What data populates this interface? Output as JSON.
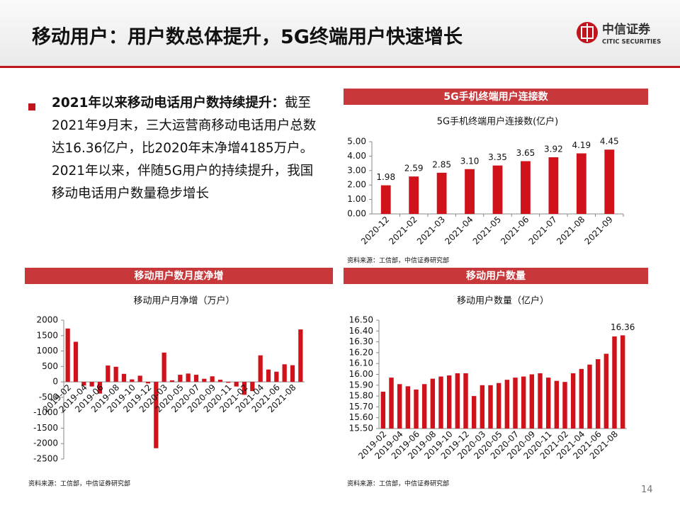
{
  "header": {
    "title": "移动用户：用户数总体提升，5G终端用户快速增长",
    "logo": "中信证券",
    "logo_en": "CITIC SECURITIES"
  },
  "bullet": {
    "lead": "2021年以来移动电话用户数持续提升：",
    "text": "截至2021年9月末，三大运营商移动电话用户总数达16.36亿户，比2020年末净增4185万户。2021年以来，伴随5G用户的持续提升，我国移动电话用户数量稳步增长"
  },
  "page_number": "14",
  "chart_data": [
    {
      "type": "bar",
      "title": "5G手机终端用户连接数",
      "subtitle": "5G手机终端用户连接数(亿户)",
      "source": "资料来源：工信部，中信证券研究部",
      "color": "#d0121b",
      "categories": [
        "2020-12",
        "2021-02",
        "2021-03",
        "2021-04",
        "2021-05",
        "2021-06",
        "2021-07",
        "2021-08",
        "2021-09"
      ],
      "values": [
        1.98,
        2.59,
        2.85,
        3.1,
        3.35,
        3.65,
        3.92,
        4.19,
        4.45
      ],
      "value_labels": [
        "1.98",
        "2.59",
        "2.85",
        "3.10",
        "3.35",
        "3.65",
        "3.92",
        "4.19",
        "4.45"
      ],
      "ylim": [
        0,
        5
      ],
      "yticks": [
        {
          "value": 0,
          "label": "0.00"
        },
        {
          "value": 1,
          "label": "1.00"
        },
        {
          "value": 2,
          "label": "2.00"
        },
        {
          "value": 3,
          "label": "3.00"
        },
        {
          "value": 4,
          "label": "4.00"
        },
        {
          "value": 5,
          "label": "5.00"
        }
      ]
    },
    {
      "type": "bar",
      "title": "移动用户数月度净增",
      "subtitle": "移动用户月净增（万户）",
      "source": "资料来源：工信部，中信证券研究部",
      "color": "#d0121b",
      "categories": [
        "2019-02",
        null,
        "2019-04",
        null,
        "2019-06",
        null,
        "2019-08",
        null,
        "2019-10",
        null,
        "2019-12",
        null,
        "2020-03",
        null,
        "2020-05",
        null,
        "2020-07",
        null,
        "2020-09",
        null,
        "2020-11",
        null,
        "2021-02",
        null,
        "2021-04",
        null,
        "2021-06",
        null,
        "2021-08",
        null
      ],
      "values": [
        1730,
        1300,
        -120,
        -150,
        -380,
        530,
        490,
        260,
        80,
        200,
        -50,
        -2150,
        950,
        50,
        230,
        270,
        230,
        100,
        180,
        70,
        -30,
        -150,
        -420,
        -300,
        860,
        400,
        330,
        570,
        540,
        1700
      ],
      "ylim": [
        -2500,
        2000
      ],
      "yticks": [
        -2500,
        -2000,
        -1500,
        -1000,
        -500,
        0,
        500,
        1000,
        1500,
        2000
      ]
    },
    {
      "type": "bar",
      "title": "移动用户数量",
      "subtitle": "移动用户数量（亿户）",
      "source": "资料来源：工信部，中信证券研究部",
      "color": "#d0121b",
      "categories": [
        "2019-02",
        null,
        "2019-04",
        null,
        "2019-06",
        null,
        "2019-08",
        null,
        "2019-10",
        null,
        "2019-12",
        null,
        "2020-03",
        null,
        "2020-05",
        null,
        "2020-07",
        null,
        "2020-09",
        null,
        "2020-11",
        null,
        "2021-02",
        null,
        "2021-04",
        null,
        "2021-06",
        null,
        "2021-08",
        null
      ],
      "values": [
        15.84,
        15.97,
        15.91,
        15.89,
        15.86,
        15.91,
        15.96,
        15.98,
        15.99,
        16.01,
        16.01,
        15.8,
        15.9,
        15.9,
        15.92,
        15.95,
        15.97,
        15.98,
        16.0,
        16.01,
        15.97,
        15.94,
        15.93,
        16.01,
        16.05,
        16.09,
        16.14,
        16.19,
        16.35,
        16.36
      ],
      "value_labels": [
        null,
        null,
        null,
        null,
        null,
        null,
        null,
        null,
        null,
        null,
        null,
        null,
        null,
        null,
        null,
        null,
        null,
        null,
        null,
        null,
        null,
        null,
        null,
        null,
        null,
        null,
        null,
        null,
        null,
        "16.36"
      ],
      "ylim": [
        15.5,
        16.5
      ],
      "yticks": [
        {
          "value": 15.5,
          "label": "15.50"
        },
        {
          "value": 15.6,
          "label": "15.60"
        },
        {
          "value": 15.7,
          "label": "15.70"
        },
        {
          "value": 15.8,
          "label": "15.80"
        },
        {
          "value": 15.9,
          "label": "15.90"
        },
        {
          "value": 16.0,
          "label": "16.00"
        },
        {
          "value": 16.1,
          "label": "16.10"
        },
        {
          "value": 16.2,
          "label": "16.20"
        },
        {
          "value": 16.3,
          "label": "16.30"
        },
        {
          "value": 16.4,
          "label": "16.40"
        },
        {
          "value": 16.5,
          "label": "16.50"
        }
      ]
    }
  ]
}
